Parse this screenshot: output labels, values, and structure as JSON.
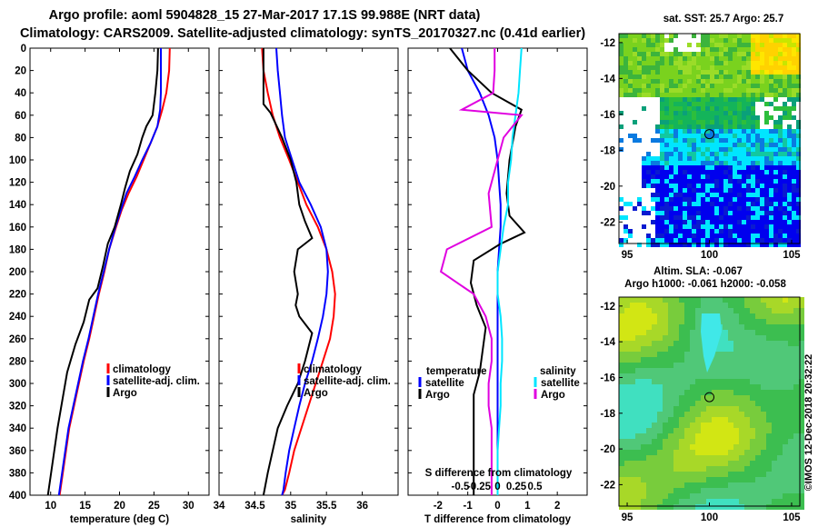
{
  "title_line1": "Argo profile: aoml 5904828_15 27-Mar-2017 17.1S 99.988E (NRT data)",
  "title_line2": "Climatology: CARS2009. Satellite-adjusted climatology: synTS_20170327.nc (0.41d earlier)",
  "side_label": "©IMOS 12-Dec-2018 20:32:22",
  "colors": {
    "climatology": "#ff0000",
    "satellite": "#0000ff",
    "argo": "#000000",
    "sat_salinity": "#00e5ff",
    "argo_salinity": "#e000e0"
  },
  "chart_data": [
    {
      "type": "line",
      "name": "temperature-profile",
      "xlabel": "temperature (deg C)",
      "ylabel": "",
      "xlim": [
        7,
        33
      ],
      "ylim": [
        400,
        0
      ],
      "xticks": [
        10,
        15,
        20,
        25,
        30
      ],
      "yticks": [
        0,
        20,
        40,
        60,
        80,
        100,
        120,
        140,
        160,
        180,
        200,
        220,
        240,
        260,
        280,
        300,
        320,
        340,
        360,
        380,
        400
      ],
      "legend": [
        "climatology",
        "satellite-adj. clim.",
        "Argo"
      ],
      "series": [
        {
          "name": "climatology",
          "color": "#ff0000",
          "x": [
            27.3,
            27.2,
            26.8,
            26.2,
            25.5,
            24.5,
            23.5,
            22.5,
            21.3,
            20.3,
            19.5,
            18.5,
            17.8,
            17.0,
            16.3,
            15.6,
            14.8,
            14.1,
            13.4,
            12.7,
            12.0,
            11.3
          ],
          "y": [
            0,
            20,
            40,
            55,
            70,
            85,
            100,
            115,
            130,
            145,
            160,
            180,
            200,
            220,
            240,
            260,
            280,
            300,
            320,
            340,
            370,
            400
          ]
        },
        {
          "name": "satellite-adj. clim.",
          "color": "#0000ff",
          "x": [
            26.0,
            26.0,
            26.0,
            25.9,
            25.5,
            24.5,
            23.3,
            22.2,
            21.0,
            20.2,
            19.4,
            18.5,
            17.7,
            16.9,
            16.2,
            15.5,
            14.7,
            14.0,
            13.3,
            12.6,
            11.9,
            11.2
          ],
          "y": [
            0,
            20,
            40,
            55,
            70,
            85,
            100,
            115,
            130,
            145,
            160,
            180,
            200,
            220,
            240,
            260,
            280,
            300,
            320,
            340,
            370,
            400
          ]
        },
        {
          "name": "Argo",
          "color": "#000000",
          "x": [
            25.6,
            25.5,
            25.2,
            24.8,
            23.9,
            23.3,
            22.6,
            21.5,
            20.8,
            20.2,
            19.3,
            18.3,
            17.6,
            16.8,
            15.6,
            14.8,
            13.6,
            12.4,
            11.7,
            11.0,
            10.3,
            9.6
          ],
          "y": [
            0,
            20,
            40,
            60,
            70,
            80,
            95,
            110,
            125,
            140,
            160,
            175,
            195,
            215,
            225,
            245,
            265,
            290,
            315,
            340,
            370,
            400
          ]
        }
      ]
    },
    {
      "type": "line",
      "name": "salinity-profile",
      "xlabel": "salinity",
      "ylabel": "",
      "xlim": [
        34,
        36.5
      ],
      "ylim": [
        400,
        0
      ],
      "xticks": [
        34,
        34.5,
        35,
        35.5,
        36
      ],
      "legend": [
        "climatology",
        "satellite-adj. clim.",
        "Argo"
      ],
      "series": [
        {
          "name": "climatology",
          "color": "#ff0000",
          "x": [
            34.6,
            34.62,
            34.68,
            34.75,
            34.85,
            34.98,
            35.1,
            35.22,
            35.38,
            35.5,
            35.58,
            35.62,
            35.6,
            35.55,
            35.45,
            35.35,
            35.25,
            35.15,
            35.05,
            34.98,
            34.92,
            34.88
          ],
          "y": [
            0,
            20,
            40,
            60,
            80,
            100,
            120,
            140,
            160,
            180,
            200,
            220,
            240,
            260,
            280,
            300,
            320,
            340,
            360,
            380,
            395,
            400
          ]
        },
        {
          "name": "satellite-adj. clim.",
          "color": "#0000ff",
          "x": [
            34.8,
            34.82,
            34.85,
            34.88,
            34.92,
            35.02,
            35.12,
            35.28,
            35.42,
            35.5,
            35.52,
            35.5,
            35.45,
            35.38,
            35.3,
            35.2,
            35.12,
            35.05,
            34.98,
            34.93,
            34.9,
            34.88
          ],
          "y": [
            0,
            20,
            40,
            60,
            80,
            100,
            120,
            140,
            160,
            180,
            200,
            220,
            240,
            260,
            280,
            300,
            320,
            340,
            360,
            380,
            395,
            400
          ]
        },
        {
          "name": "Argo",
          "color": "#000000",
          "x": [
            34.62,
            34.62,
            34.62,
            34.62,
            34.72,
            34.88,
            35.0,
            35.08,
            35.12,
            35.2,
            35.3,
            35.1,
            35.05,
            35.1,
            35.07,
            35.12,
            35.3,
            35.2,
            35.1,
            34.95,
            34.82,
            34.75,
            34.68,
            34.62
          ],
          "y": [
            0,
            20,
            40,
            50,
            58,
            80,
            100,
            120,
            140,
            155,
            170,
            180,
            200,
            220,
            230,
            240,
            255,
            280,
            300,
            320,
            340,
            360,
            380,
            400
          ]
        }
      ]
    },
    {
      "type": "line",
      "name": "difference-profile",
      "xlabel": "T difference from climatology",
      "top_axis_label": "S difference from climatology",
      "xlim": [
        -3,
        3
      ],
      "ylim": [
        400,
        0
      ],
      "xticks": [
        -2,
        -1,
        0,
        1,
        2
      ],
      "top_ticks": [
        -0.5,
        -0.25,
        0,
        0.25,
        0.5
      ],
      "legend_temperature": [
        "temperature",
        "satellite",
        "Argo"
      ],
      "legend_salinity": [
        "salinity",
        "satellite",
        "Argo"
      ],
      "series": [
        {
          "name": "T satellite",
          "color": "#0000ff",
          "x": [
            -1.2,
            -1.0,
            -0.6,
            -0.3,
            -0.1,
            0.0,
            0.05,
            0.1,
            0.1,
            0.05,
            0.0,
            0.0,
            0.0,
            0.0,
            0.0,
            0.0,
            0.0,
            0.0,
            0.0,
            0.0,
            0.0
          ],
          "y": [
            0,
            20,
            40,
            60,
            80,
            100,
            120,
            140,
            160,
            180,
            200,
            220,
            240,
            260,
            280,
            300,
            320,
            340,
            360,
            380,
            400
          ]
        },
        {
          "name": "T Argo",
          "color": "#000000",
          "x": [
            -1.6,
            -1.0,
            -0.2,
            0.8,
            0.6,
            0.4,
            0.3,
            0.4,
            0.9,
            0.1,
            -0.8,
            -0.9,
            -0.7,
            -0.4,
            -0.5,
            -0.6,
            -0.8,
            -0.8,
            -0.8,
            -0.8,
            -0.8
          ],
          "y": [
            0,
            20,
            40,
            55,
            70,
            100,
            130,
            150,
            165,
            175,
            190,
            210,
            230,
            250,
            270,
            290,
            310,
            330,
            350,
            370,
            400
          ]
        },
        {
          "name": "S satellite",
          "color": "#00e5ff",
          "x": [
            0.8,
            0.75,
            0.7,
            0.6,
            0.5,
            0.45,
            0.35,
            0.35,
            0.2,
            0.1,
            0.0,
            0.0,
            0.1,
            0.15,
            0.15,
            0.1,
            0.1,
            0.05,
            0.0,
            0.0,
            0.0
          ],
          "y": [
            0,
            20,
            40,
            60,
            80,
            100,
            120,
            140,
            160,
            180,
            200,
            220,
            240,
            260,
            280,
            300,
            320,
            340,
            360,
            380,
            400
          ]
        },
        {
          "name": "S Argo",
          "color": "#e000e0",
          "x": [
            -0.1,
            -0.1,
            -0.15,
            -1.2,
            0.8,
            0.2,
            0.0,
            -0.3,
            -0.2,
            -1.7,
            -1.9,
            -0.8,
            -0.4,
            -0.2,
            -0.2,
            -0.3,
            -0.3,
            -0.2,
            -0.2,
            -0.2,
            -0.2
          ],
          "y": [
            0,
            20,
            40,
            55,
            60,
            80,
            100,
            130,
            160,
            180,
            200,
            220,
            240,
            260,
            280,
            300,
            320,
            340,
            360,
            380,
            400
          ]
        }
      ]
    },
    {
      "type": "heatmap",
      "name": "sst-map",
      "title": "sat. SST: 25.7 Argo: 25.7",
      "xticks": [
        95,
        100,
        105
      ],
      "yticks": [
        -12,
        -14,
        -16,
        -18,
        -20,
        -22
      ],
      "xlim": [
        94.5,
        105.5
      ],
      "ylim": [
        -23.2,
        -11.5
      ],
      "marker": {
        "lon": 100.0,
        "lat": -17.1
      }
    },
    {
      "type": "heatmap",
      "name": "sla-map",
      "title": "Altim. SLA: -0.067",
      "subtitle": "Argo h1000: -0.061 h2000: -0.058",
      "xticks": [
        95,
        100,
        105
      ],
      "yticks": [
        -12,
        -14,
        -16,
        -18,
        -20,
        -22
      ],
      "xlim": [
        94.5,
        105.5
      ],
      "ylim": [
        -23.2,
        -11.5
      ],
      "marker": {
        "lon": 100.0,
        "lat": -17.1
      }
    }
  ]
}
